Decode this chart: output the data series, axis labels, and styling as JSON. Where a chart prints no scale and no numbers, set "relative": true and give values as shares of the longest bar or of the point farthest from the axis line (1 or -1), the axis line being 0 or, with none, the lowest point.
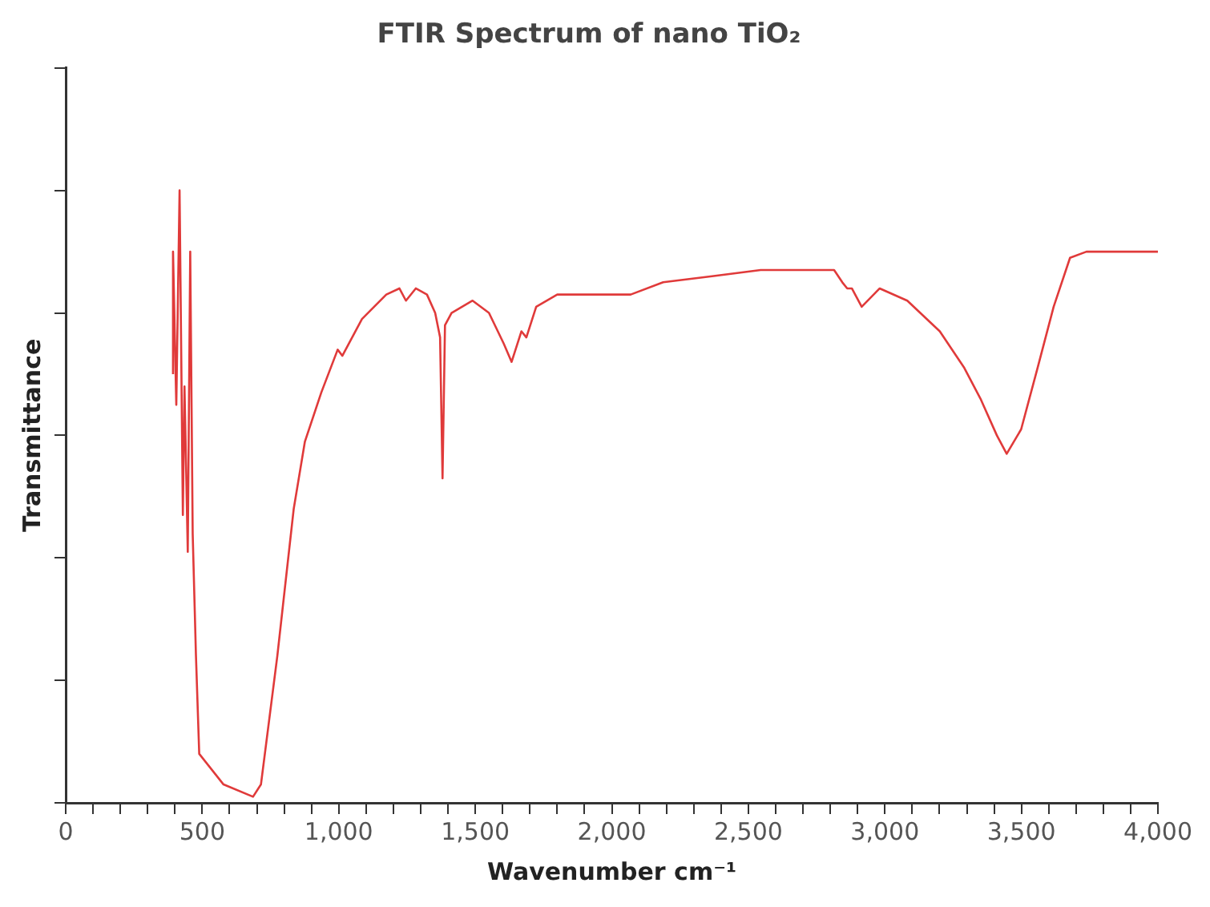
{
  "chart_data": {
    "type": "line",
    "title": "FTIR Spectrum of nano TiO₂",
    "xlabel": "Wavenumber cm⁻¹",
    "ylabel": "Transmittance",
    "relative": true,
    "grid": false,
    "legend": false,
    "marker": "none",
    "line_style": "solid",
    "xlim": [
      0,
      4000
    ],
    "xticks": [
      0,
      {
        "value": 100,
        "label": null
      },
      {
        "value": 200,
        "label": null
      },
      {
        "value": 300,
        "label": null
      },
      {
        "value": 400,
        "label": null
      },
      500,
      {
        "value": 600,
        "label": null
      },
      {
        "value": 700,
        "label": null
      },
      {
        "value": 800,
        "label": null
      },
      {
        "value": 900,
        "label": null
      },
      {
        "value": 1000,
        "label": "1,000"
      },
      {
        "value": 1100,
        "label": null
      },
      {
        "value": 1200,
        "label": null
      },
      {
        "value": 1300,
        "label": null
      },
      {
        "value": 1400,
        "label": null
      },
      {
        "value": 1500,
        "label": "1,500"
      },
      {
        "value": 1600,
        "label": null
      },
      {
        "value": 1700,
        "label": null
      },
      {
        "value": 1800,
        "label": null
      },
      {
        "value": 1900,
        "label": null
      },
      {
        "value": 2000,
        "label": "2,000"
      },
      {
        "value": 2100,
        "label": null
      },
      {
        "value": 2200,
        "label": null
      },
      {
        "value": 2300,
        "label": null
      },
      {
        "value": 2400,
        "label": null
      },
      {
        "value": 2500,
        "label": "2,500"
      },
      {
        "value": 2600,
        "label": null
      },
      {
        "value": 2700,
        "label": null
      },
      {
        "value": 2800,
        "label": null
      },
      {
        "value": 2900,
        "label": null
      },
      {
        "value": 3000,
        "label": "3,000"
      },
      {
        "value": 3100,
        "label": null
      },
      {
        "value": 3200,
        "label": null
      },
      {
        "value": 3300,
        "label": null
      },
      {
        "value": 3400,
        "label": null
      },
      {
        "value": 3500,
        "label": "3,500"
      },
      {
        "value": 3600,
        "label": null
      },
      {
        "value": 3700,
        "label": null
      },
      {
        "value": 3800,
        "label": null
      },
      {
        "value": 3900,
        "label": null
      },
      {
        "value": 4000,
        "label": "4,000"
      }
    ],
    "series": [
      {
        "color": "#e03a3a",
        "x": [
          393,
          393,
          405,
          417,
          429,
          435,
          447,
          456,
          465,
          477,
          489,
          578,
          686,
          715,
          775,
          835,
          876,
          936,
          996,
          1013,
          1085,
          1174,
          1222,
          1246,
          1282,
          1323,
          1353,
          1371,
          1380,
          1389,
          1413,
          1490,
          1550,
          1604,
          1633,
          1669,
          1687,
          1723,
          1800,
          1890,
          2069,
          2188,
          2367,
          2545,
          2814,
          2844,
          2862,
          2879,
          2915,
          2981,
          3082,
          3201,
          3291,
          3350,
          3410,
          3446,
          3499,
          3559,
          3618,
          3678,
          3738,
          3857,
          4000
        ],
        "values": [
          0.7,
          0.9,
          0.65,
          1.0,
          0.47,
          0.68,
          0.41,
          0.9,
          0.44,
          0.24,
          0.08,
          0.03,
          0.01,
          0.03,
          0.24,
          0.48,
          0.59,
          0.67,
          0.74,
          0.73,
          0.79,
          0.83,
          0.84,
          0.82,
          0.84,
          0.83,
          0.8,
          0.76,
          0.53,
          0.78,
          0.8,
          0.82,
          0.8,
          0.75,
          0.72,
          0.77,
          0.76,
          0.81,
          0.83,
          0.83,
          0.83,
          0.85,
          0.86,
          0.87,
          0.87,
          0.85,
          0.84,
          0.84,
          0.81,
          0.84,
          0.82,
          0.77,
          0.71,
          0.66,
          0.6,
          0.57,
          0.61,
          0.71,
          0.81,
          0.89,
          0.9,
          0.9,
          0.9
        ]
      }
    ]
  }
}
